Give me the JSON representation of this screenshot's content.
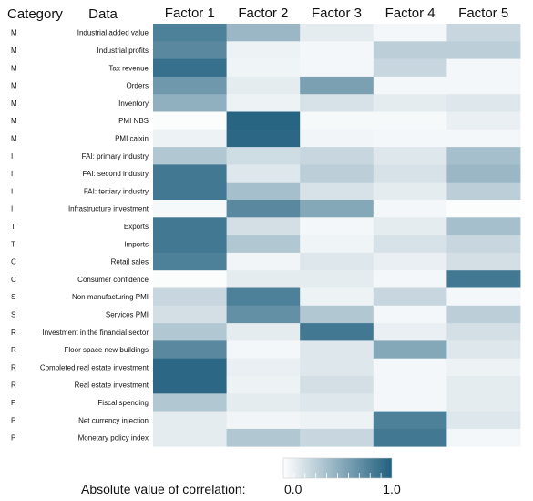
{
  "chart_data": {
    "type": "heatmap",
    "title": "",
    "row_header": "Category",
    "data_header": "Data",
    "columns": [
      "Factor 1",
      "Factor 2",
      "Factor 3",
      "Factor 4",
      "Factor 5"
    ],
    "rows": [
      {
        "category": "M",
        "label": "Industrial added value",
        "values": [
          0.8,
          0.45,
          0.12,
          0.05,
          0.25
        ]
      },
      {
        "category": "M",
        "label": "Industrial profits",
        "values": [
          0.75,
          0.08,
          0.05,
          0.3,
          0.3
        ]
      },
      {
        "category": "M",
        "label": "Tax revenue",
        "values": [
          0.9,
          0.07,
          0.05,
          0.25,
          0.05
        ]
      },
      {
        "category": "M",
        "label": "Orders",
        "values": [
          0.65,
          0.12,
          0.6,
          0.05,
          0.05
        ]
      },
      {
        "category": "M",
        "label": "Inventory",
        "values": [
          0.5,
          0.08,
          0.18,
          0.12,
          0.15
        ]
      },
      {
        "category": "M",
        "label": "PMI NBS",
        "values": [
          0.02,
          0.97,
          0.04,
          0.04,
          0.1
        ]
      },
      {
        "category": "M",
        "label": "PMI caixin",
        "values": [
          0.08,
          0.95,
          0.06,
          0.05,
          0.05
        ]
      },
      {
        "category": "I",
        "label": "FAI: primary industry",
        "values": [
          0.35,
          0.22,
          0.25,
          0.15,
          0.4
        ]
      },
      {
        "category": "I",
        "label": "FAI: second industry",
        "values": [
          0.85,
          0.15,
          0.3,
          0.18,
          0.45
        ]
      },
      {
        "category": "I",
        "label": "FAI: tertiary industry",
        "values": [
          0.85,
          0.4,
          0.18,
          0.12,
          0.3
        ]
      },
      {
        "category": "I",
        "label": "Infrastructure investment",
        "values": [
          0.04,
          0.75,
          0.55,
          0.05,
          0.02
        ]
      },
      {
        "category": "T",
        "label": "Exports",
        "values": [
          0.85,
          0.2,
          0.05,
          0.12,
          0.4
        ]
      },
      {
        "category": "T",
        "label": "Imports",
        "values": [
          0.85,
          0.35,
          0.07,
          0.18,
          0.25
        ]
      },
      {
        "category": "C",
        "label": "Retail sales",
        "values": [
          0.8,
          0.06,
          0.15,
          0.1,
          0.2
        ]
      },
      {
        "category": "C",
        "label": "Consumer confidence",
        "values": [
          0.02,
          0.12,
          0.12,
          0.05,
          0.85
        ]
      },
      {
        "category": "S",
        "label": "Non manufacturing PMI",
        "values": [
          0.25,
          0.8,
          0.08,
          0.25,
          0.05
        ]
      },
      {
        "category": "S",
        "label": "Services PMI",
        "values": [
          0.2,
          0.7,
          0.35,
          0.05,
          0.3
        ]
      },
      {
        "category": "R",
        "label": "Investment in the financial sector",
        "values": [
          0.35,
          0.12,
          0.85,
          0.1,
          0.2
        ]
      },
      {
        "category": "R",
        "label": "Floor space new buildings",
        "values": [
          0.75,
          0.05,
          0.15,
          0.55,
          0.15
        ]
      },
      {
        "category": "R",
        "label": "Completed real estate investment",
        "values": [
          0.95,
          0.1,
          0.15,
          0.05,
          0.08
        ]
      },
      {
        "category": "R",
        "label": "Real estate investment",
        "values": [
          0.95,
          0.08,
          0.2,
          0.05,
          0.12
        ]
      },
      {
        "category": "P",
        "label": "Fiscal spending",
        "values": [
          0.35,
          0.12,
          0.15,
          0.05,
          0.12
        ]
      },
      {
        "category": "P",
        "label": "Net currency injection",
        "values": [
          0.12,
          0.06,
          0.08,
          0.8,
          0.15
        ]
      },
      {
        "category": "P",
        "label": "Monetary policy index",
        "values": [
          0.12,
          0.35,
          0.25,
          0.85,
          0.05
        ]
      }
    ],
    "colorbar": {
      "label": "Absolute value of correlation:",
      "min": 0.0,
      "max": 1.0,
      "min_label": "0.0",
      "max_label": "1.0",
      "color_low": "#ffffff",
      "color_high": "#21607f"
    },
    "grid": false,
    "legend_position": "bottom"
  }
}
